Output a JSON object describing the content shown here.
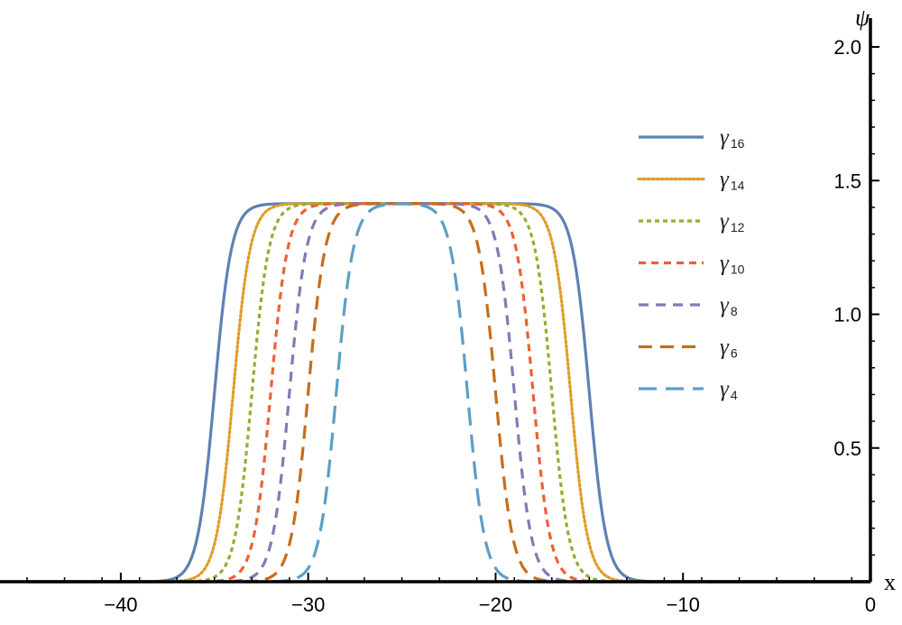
{
  "chart_data": {
    "type": "line",
    "title": "",
    "xlabel": "x",
    "ylabel": "ψ",
    "xlim": [
      -45,
      0
    ],
    "ylim": [
      0,
      2.0
    ],
    "xticks": [
      -40,
      -30,
      -20,
      -10,
      0
    ],
    "xtick_labels": [
      "−40",
      "−30",
      "−20",
      "−10",
      "0"
    ],
    "yticks": [
      0.5,
      1.0,
      1.5,
      2.0
    ],
    "ytick_labels": [
      "0.5",
      "1.0",
      "1.5",
      "2.0"
    ],
    "plateau": 1.414,
    "legend_position": "top-right",
    "grid": false,
    "series": [
      {
        "name": "γ16",
        "symbol": "γ",
        "sub": "16",
        "color": "#5E81B5",
        "dash": "solid",
        "left_edge": -35.0,
        "right_edge": -15.0,
        "steepness": 1.1
      },
      {
        "name": "γ14",
        "symbol": "γ",
        "sub": "14",
        "color": "#E19C24",
        "dash": "dotted",
        "left_edge": -34.0,
        "right_edge": -16.0,
        "steepness": 1.1
      },
      {
        "name": "γ12",
        "symbol": "γ",
        "sub": "12",
        "color": "#8FB032",
        "dash": "short-dash",
        "left_edge": -33.0,
        "right_edge": -17.0,
        "steepness": 1.1
      },
      {
        "name": "γ10",
        "symbol": "γ",
        "sub": "10",
        "color": "#EB6235",
        "dash": "dash",
        "left_edge": -32.0,
        "right_edge": -18.0,
        "steepness": 1.1
      },
      {
        "name": "γ8",
        "symbol": "γ",
        "sub": "8",
        "color": "#8778B3",
        "dash": "medium-dash",
        "left_edge": -31.0,
        "right_edge": -19.0,
        "steepness": 1.1
      },
      {
        "name": "γ6",
        "symbol": "γ",
        "sub": "6",
        "color": "#C56E1A",
        "dash": "long-dash",
        "left_edge": -30.0,
        "right_edge": -20.0,
        "steepness": 1.1
      },
      {
        "name": "γ4",
        "symbol": "γ",
        "sub": "4",
        "color": "#5D9EC7",
        "dash": "longer-dash",
        "left_edge": -28.5,
        "right_edge": -21.5,
        "steepness": 1.1
      }
    ]
  }
}
